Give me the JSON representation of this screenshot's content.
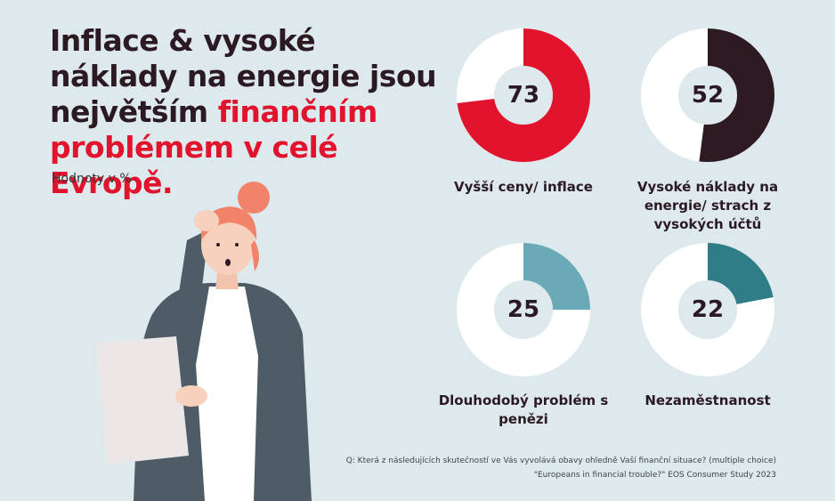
{
  "header": {
    "title_part1": "Inflace & vysoké náklady na energie jsou největším",
    "title_part2": "finančním problémem v",
    "title_part3": "celé Evropě.",
    "subtitle": "Hodnoty v %"
  },
  "colors": {
    "remainder": "#ffffff",
    "accent_red": "#e2142d",
    "dark": "#2b1a22"
  },
  "chart_data": {
    "type": "pie",
    "unit": "%",
    "items": [
      {
        "label": "Vyšší ceny/ inflace",
        "value": 73,
        "color": "#e2142d"
      },
      {
        "label": "Vysoké náklady na energie/ strach z vysokých účtů",
        "value": 52,
        "color": "#2d1a22"
      },
      {
        "label": "Dlouhodobý problém s penězi",
        "value": 25,
        "color": "#6aaab6"
      },
      {
        "label": "Nezaměstnanost",
        "value": 22,
        "color": "#2f7d86"
      }
    ]
  },
  "footer": {
    "question": "Q: Která z následujících skutečností ve Vás vyvolává obavy ohledně Vaší finanční situace? (multiple choice)",
    "source": "\"Europeans in financial trouble?\" EOS Consumer Study 2023"
  }
}
